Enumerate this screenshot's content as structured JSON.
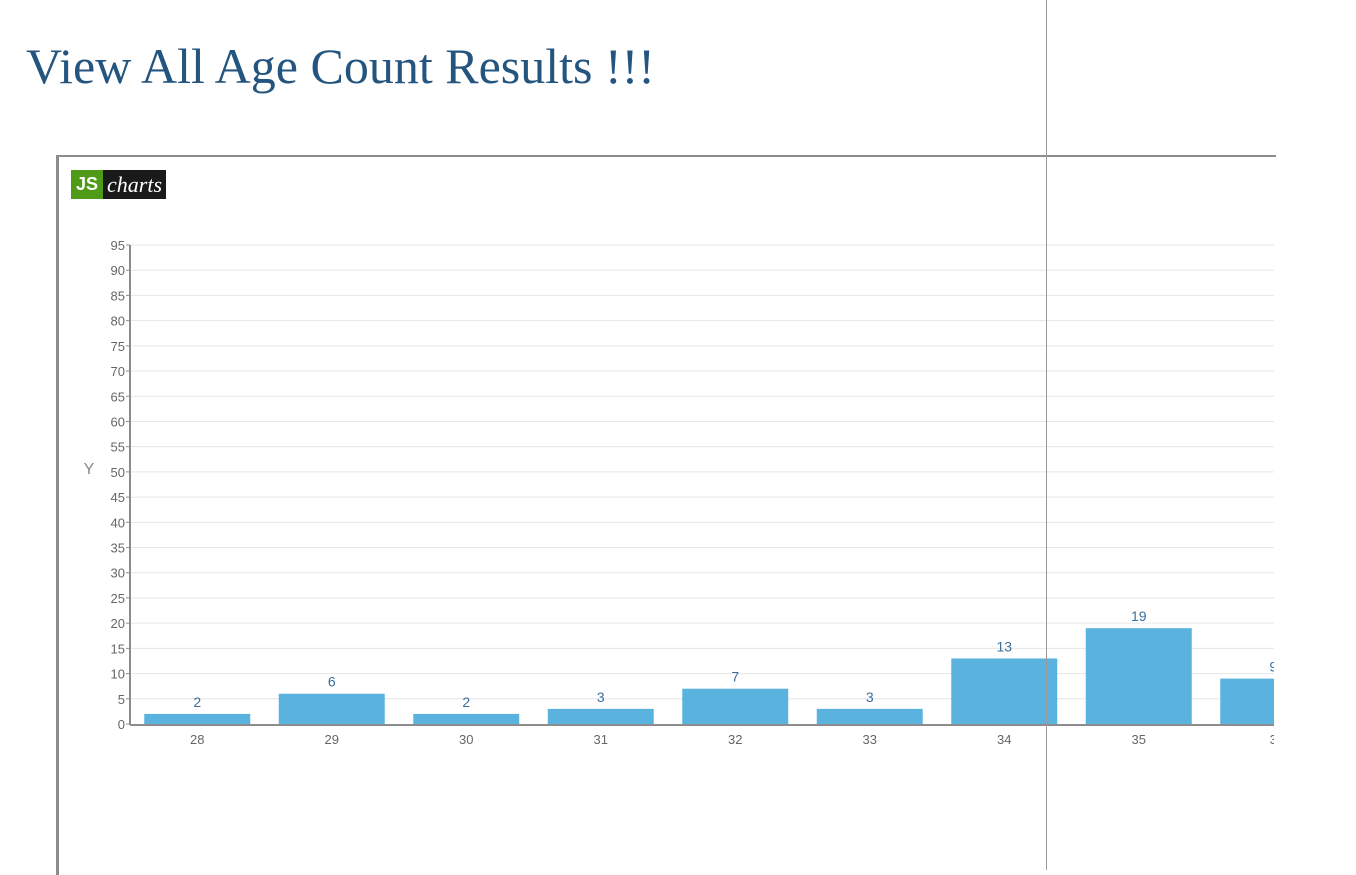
{
  "page": {
    "title": "View All Age Count Results !!!"
  },
  "logo": {
    "js": "JS",
    "charts": "charts"
  },
  "colors": {
    "title": "#24557f",
    "bar": "#5ab3de",
    "value_label": "#3a6f9c",
    "tick_label": "#666666",
    "grid": "#e6e6e6",
    "axis": "#8c8c8c"
  },
  "chart_data": {
    "type": "bar",
    "categories": [
      "28",
      "29",
      "30",
      "31",
      "32",
      "33",
      "34",
      "35",
      "3"
    ],
    "values": [
      2,
      6,
      2,
      3,
      7,
      3,
      13,
      19,
      9
    ],
    "value_labels": [
      "2",
      "6",
      "2",
      "3",
      "7",
      "3",
      "13",
      "19",
      "9"
    ],
    "title": "",
    "xlabel": "",
    "ylabel": "Y",
    "ylim": [
      0,
      95
    ],
    "yticks": [
      0,
      5,
      10,
      15,
      20,
      25,
      30,
      35,
      40,
      45,
      50,
      55,
      60,
      65,
      70,
      75,
      80,
      85,
      90,
      95
    ],
    "grid": true
  }
}
